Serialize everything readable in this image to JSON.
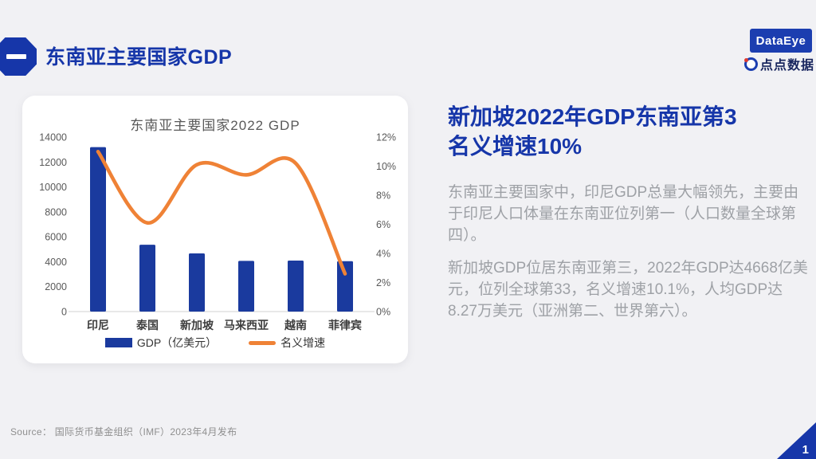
{
  "page": {
    "background": "#F1F1F4",
    "page_number": "1"
  },
  "header": {
    "section_marker": "一",
    "title": "东南亚主要国家GDP"
  },
  "branding": {
    "wordmark": "DataEye",
    "cn_name": "点点数据",
    "box_color": "#1C3EB0",
    "accent_red": "#E03A2F"
  },
  "chart_data": {
    "type": "bar+line combo",
    "title": "东南亚主要国家2022 GDP",
    "categories": [
      "印尼",
      "泰国",
      "新加坡",
      "马来西亚",
      "越南",
      "菲律宾"
    ],
    "series": [
      {
        "name": "GDP（亿美元）",
        "type": "bar",
        "axis": "left",
        "color": "#1A3A9E",
        "values": [
          13190,
          5360,
          4668,
          4070,
          4090,
          4040
        ]
      },
      {
        "name": "名义增速",
        "type": "line",
        "axis": "right",
        "color": "#EF8236",
        "values": [
          11.0,
          6.1,
          10.1,
          9.4,
          10.2,
          2.6
        ]
      }
    ],
    "left_axis": {
      "min": 0,
      "max": 14000,
      "step": 2000,
      "ticks": [
        "14000",
        "12000",
        "10000",
        "8000",
        "6000",
        "4000",
        "2000",
        "0"
      ]
    },
    "right_axis": {
      "min": 0,
      "max": 12,
      "step": 2,
      "ticks": [
        "12%",
        "10%",
        "8%",
        "6%",
        "4%",
        "2%",
        "0%"
      ]
    },
    "grid": false,
    "legend_position": "bottom"
  },
  "insight": {
    "heading_line1": "新加坡2022年GDP东南亚第3",
    "heading_line2": "名义增速10%",
    "paragraph1": "东南亚主要国家中，印尼GDP总量大幅领先，主要由于印尼人口体量在东南亚位列第一（人口数量全球第四）。",
    "paragraph2": "新加坡GDP位居东南亚第三，2022年GDP达4668亿美元，位列全球第33，名义增速10.1%，人均GDP达8.27万美元（亚洲第二、世界第六）。"
  },
  "footer": {
    "source": "Source： 国际货币基金组织（IMF）2023年4月发布"
  }
}
